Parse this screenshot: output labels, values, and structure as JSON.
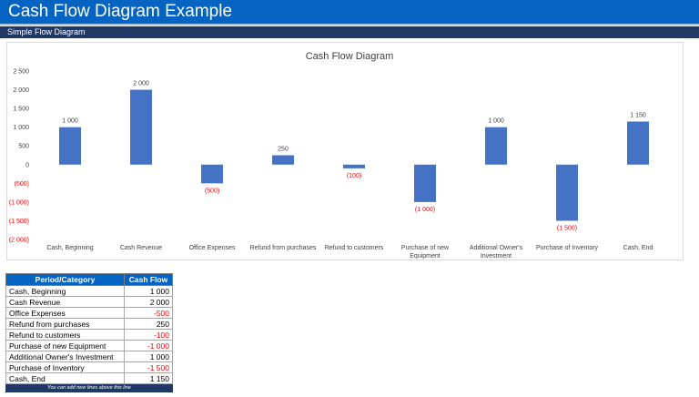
{
  "header": {
    "title": "Cash Flow Diagram Example"
  },
  "section": {
    "label": "Simple Flow Diagram"
  },
  "chart_data": {
    "type": "bar",
    "title": "Cash Flow Diagram",
    "categories": [
      "Cash, Beginning",
      "Cash Revenue",
      "Office Expenses",
      "Refund from purchases",
      "Refund to customers",
      "Purchase of new Equipment",
      "Additional Owner's Investment",
      "Purchase of Inventory",
      "Cash, End"
    ],
    "category_lines": [
      [
        "Cash, Beginning"
      ],
      [
        "Cash Revenue"
      ],
      [
        "Office Expenses"
      ],
      [
        "Refund from purchases"
      ],
      [
        "Refund to customers"
      ],
      [
        "Purchase of new",
        "Equipment"
      ],
      [
        "Additional Owner's",
        "Investment"
      ],
      [
        "Purchase of Inventory"
      ],
      [
        "Cash, End"
      ]
    ],
    "values": [
      1000,
      2000,
      -500,
      250,
      -100,
      -1000,
      1000,
      -1500,
      1150
    ],
    "data_labels": [
      "1 000",
      "2 000",
      "(500)",
      "250",
      "(100)",
      "(1 000)",
      "1 000",
      "(1 500)",
      "1 150"
    ],
    "ylim": [
      -2000,
      2500
    ],
    "yticks": [
      2500,
      2000,
      1500,
      1000,
      500,
      0,
      -500,
      -1000,
      -1500,
      -2000
    ],
    "ytick_labels": [
      "2 500",
      "2 000",
      "1 500",
      "1 000",
      "500",
      "0",
      "(500)",
      "(1 000)",
      "(1 500)",
      "(2 000)"
    ],
    "bar_color": "#4472c4",
    "negative_label_color": "#ff0000",
    "grid": false,
    "legend": "none",
    "xlabel": "",
    "ylabel": ""
  },
  "table": {
    "headers": [
      "Period/Category",
      "Cash Flow"
    ],
    "rows": [
      {
        "category": "Cash, Beginning",
        "value": "1 000"
      },
      {
        "category": "Cash Revenue",
        "value": "2 000"
      },
      {
        "category": "Office Expenses",
        "value": "-500"
      },
      {
        "category": "Refund from purchases",
        "value": "250"
      },
      {
        "category": "Refund to customers",
        "value": "-100"
      },
      {
        "category": "Purchase of new Equipment",
        "value": "-1 000"
      },
      {
        "category": "Additional Owner's Investment",
        "value": "1 000"
      },
      {
        "category": "Purchase of Inventory",
        "value": "-1 500"
      },
      {
        "category": "Cash, End",
        "value": "1 150"
      }
    ],
    "footer": "You can add new lines above this line"
  }
}
